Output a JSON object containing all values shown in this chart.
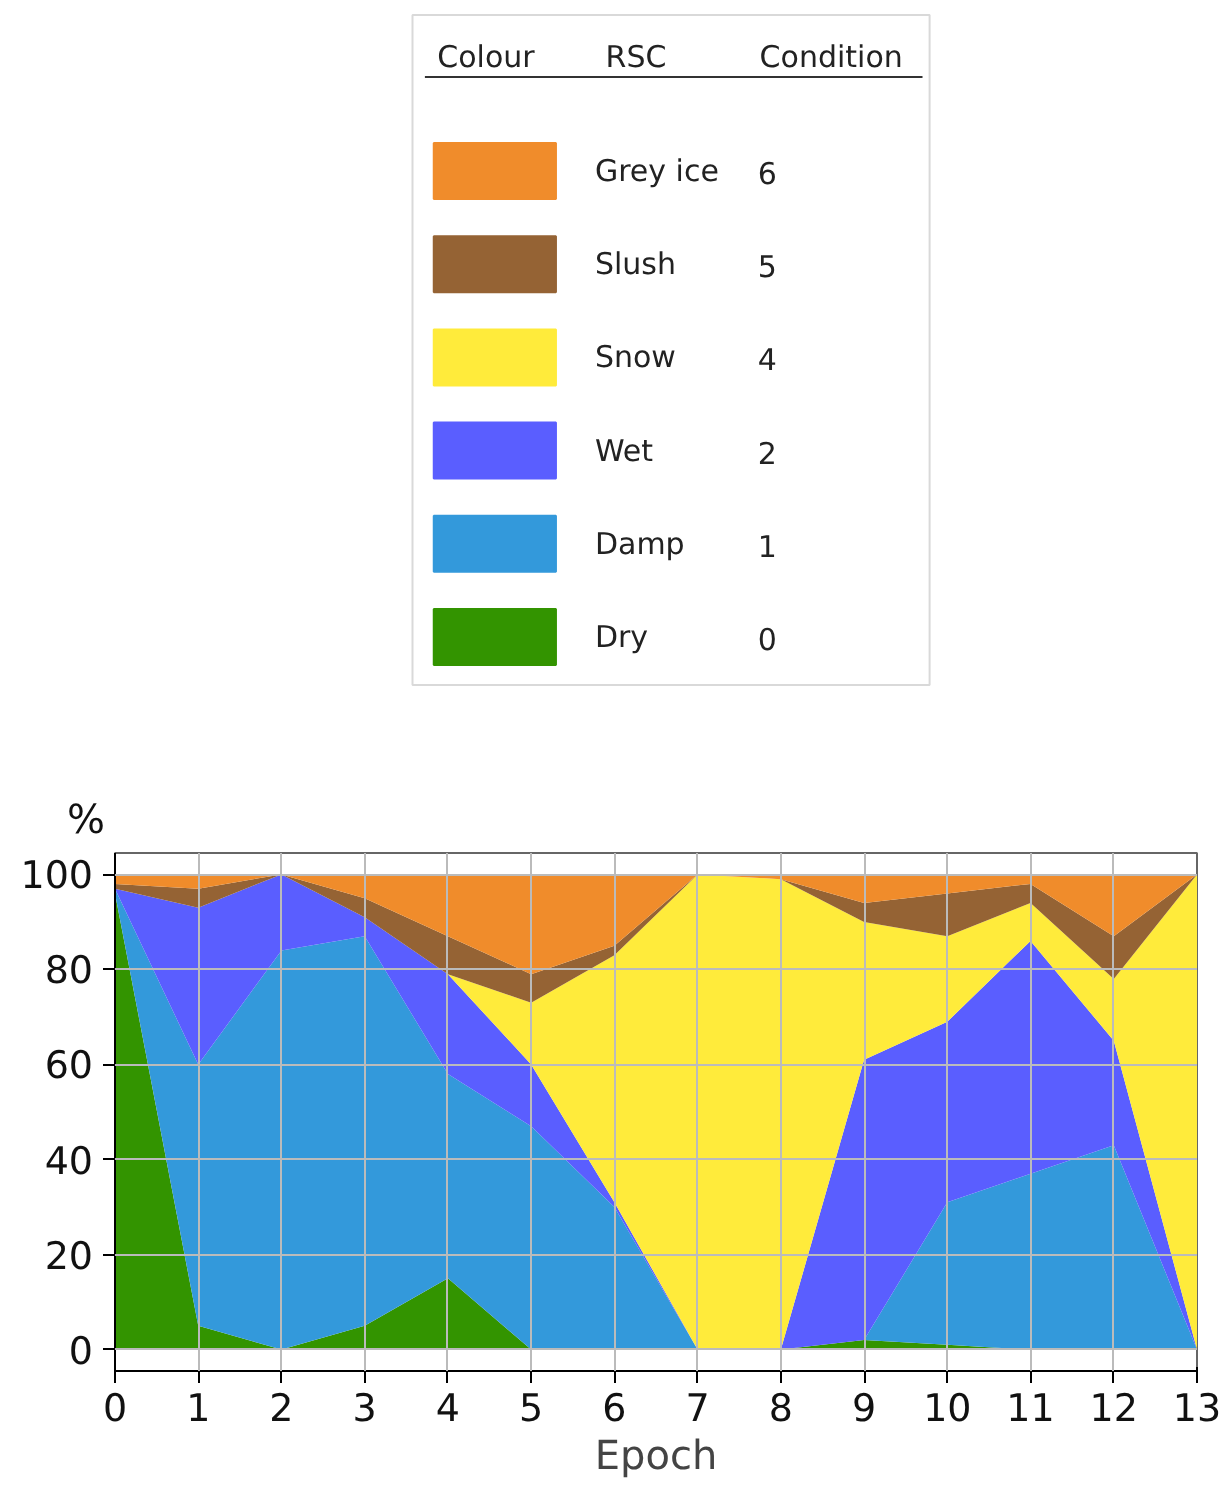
{
  "chart_data": {
    "type": "area",
    "stacked": true,
    "xlabel": "Epoch",
    "ylabel": "%",
    "x": [
      0,
      1,
      2,
      3,
      4,
      5,
      6,
      7,
      8,
      9,
      10,
      11,
      12,
      13
    ],
    "xlim": [
      0,
      13
    ],
    "xticks": [
      0,
      1,
      2,
      3,
      4,
      5,
      6,
      7,
      8,
      9,
      10,
      11,
      12,
      13
    ],
    "ylim": [
      -4.5,
      104.5
    ],
    "yticks": [
      0,
      20,
      40,
      60,
      80,
      100
    ],
    "grid": true,
    "legend": "top",
    "series": [
      {
        "name": "Dry",
        "color": "#339400",
        "values": [
          96,
          5,
          0,
          5,
          15,
          0,
          0,
          0,
          0,
          2,
          1,
          0,
          0,
          0
        ]
      },
      {
        "name": "Damp",
        "color": "#3399db",
        "values": [
          1,
          55,
          84,
          82,
          43,
          47,
          30,
          0,
          0,
          0,
          30,
          37,
          43,
          0
        ]
      },
      {
        "name": "Wet",
        "color": "#5a5eff",
        "values": [
          0,
          33,
          16,
          4,
          21,
          13,
          1,
          0,
          0,
          59,
          38,
          49,
          22,
          0
        ]
      },
      {
        "name": "Snow",
        "color": "#ffeb3b",
        "values": [
          null,
          null,
          null,
          null,
          0,
          13,
          52,
          100,
          99,
          29,
          18,
          8,
          13,
          100
        ]
      },
      {
        "name": "Slush",
        "color": "#956334",
        "values": [
          1,
          4,
          0,
          4,
          8,
          6,
          2,
          0,
          0,
          4,
          9,
          4,
          9,
          0
        ]
      },
      {
        "name": "Grey ice",
        "color": "#f08c2b",
        "values": [
          2,
          3,
          0,
          5,
          13,
          21,
          15,
          0,
          1,
          6,
          4,
          2,
          13,
          0
        ]
      }
    ],
    "annotations": [
      "Colour",
      "RSC",
      "Condition",
      "0",
      "1",
      "2",
      "4",
      "5",
      "6"
    ]
  }
}
